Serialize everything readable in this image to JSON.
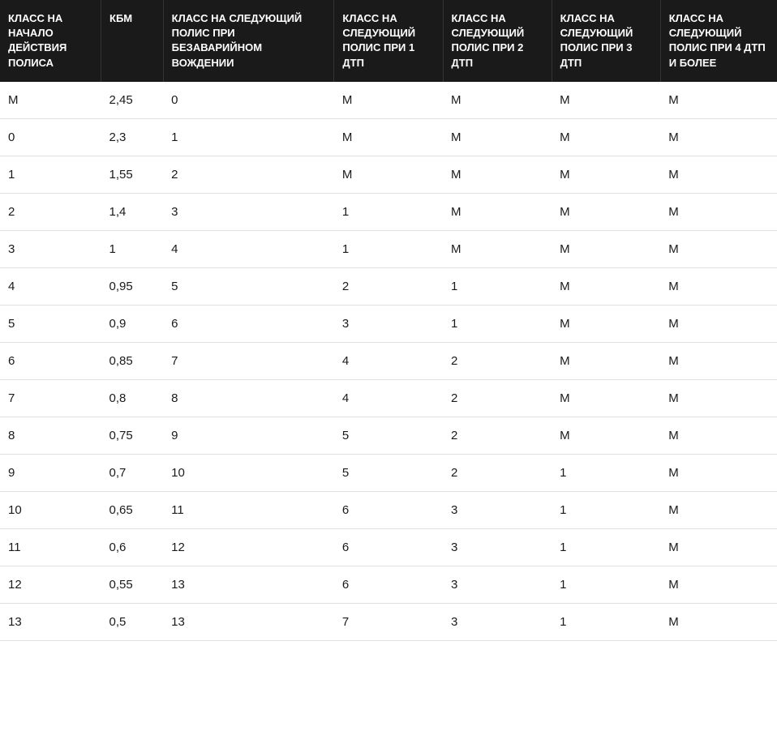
{
  "table": {
    "type": "table",
    "header_bg": "#1a1a1a",
    "header_text_color": "#ffffff",
    "cell_text_color": "#1a1a1a",
    "row_border_color": "#e0e0e0",
    "header_fontsize": 13,
    "cell_fontsize": 15,
    "columns": [
      "КЛАСС НА НАЧАЛО ДЕЙСТВИЯ ПОЛИСА",
      "КБМ",
      "КЛАСС НА СЛЕДУЮЩИЙ ПОЛИС ПРИ БЕЗАВАРИЙНОМ ВОЖДЕНИИ",
      "КЛАСС НА СЛЕДУЮЩИЙ ПОЛИС ПРИ 1 ДТП",
      "КЛАСС НА СЛЕДУЮЩИЙ ПОЛИС ПРИ 2 ДТП",
      "КЛАСС НА СЛЕДУЮЩИЙ ПОЛИС ПРИ 3 ДТП",
      "КЛАСС НА СЛЕДУЮЩИЙ ПОЛИС ПРИ 4 ДТП И БОЛЕЕ"
    ],
    "column_widths_pct": [
      13,
      8,
      22,
      14,
      14,
      14,
      15
    ],
    "rows": [
      [
        "М",
        "2,45",
        "0",
        "М",
        "М",
        "М",
        "М"
      ],
      [
        "0",
        "2,3",
        "1",
        "М",
        "М",
        "М",
        "М"
      ],
      [
        "1",
        "1,55",
        "2",
        "М",
        "М",
        "М",
        "М"
      ],
      [
        "2",
        "1,4",
        "3",
        "1",
        "М",
        "М",
        "М"
      ],
      [
        "3",
        "1",
        "4",
        "1",
        "М",
        "М",
        "М"
      ],
      [
        "4",
        "0,95",
        "5",
        "2",
        "1",
        "М",
        "М"
      ],
      [
        "5",
        "0,9",
        "6",
        "3",
        "1",
        "М",
        "М"
      ],
      [
        "6",
        "0,85",
        "7",
        "4",
        "2",
        "М",
        "М"
      ],
      [
        "7",
        "0,8",
        "8",
        "4",
        "2",
        "М",
        "М"
      ],
      [
        "8",
        "0,75",
        "9",
        "5",
        "2",
        "М",
        "М"
      ],
      [
        "9",
        "0,7",
        "10",
        "5",
        "2",
        "1",
        "М"
      ],
      [
        "10",
        "0,65",
        "11",
        "6",
        "3",
        "1",
        "М"
      ],
      [
        "11",
        "0,6",
        "12",
        "6",
        "3",
        "1",
        "М"
      ],
      [
        "12",
        "0,55",
        "13",
        "6",
        "3",
        "1",
        "М"
      ],
      [
        "13",
        "0,5",
        "13",
        "7",
        "3",
        "1",
        "М"
      ]
    ]
  }
}
